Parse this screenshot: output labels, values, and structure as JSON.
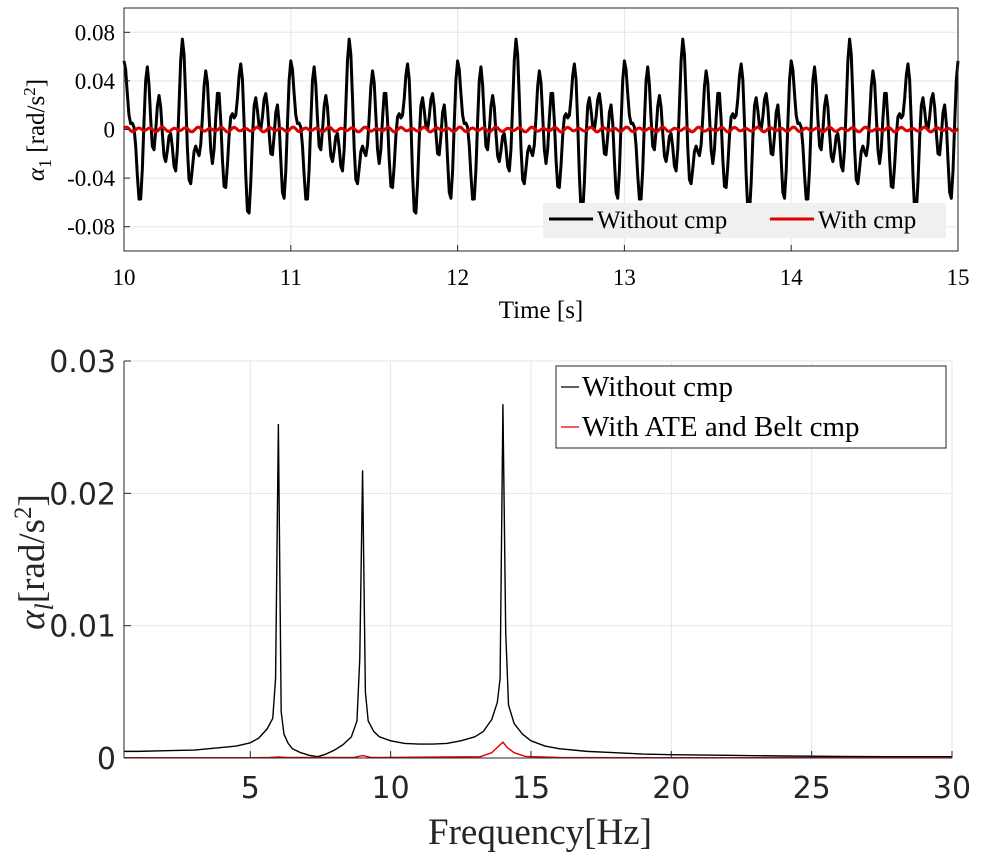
{
  "colors": {
    "without": "#000000",
    "with": "#dd0000",
    "grid": "#e6e6e6",
    "axis": "#262626",
    "legend_bg_top": "#f0f0f0"
  },
  "chart_data": [
    {
      "type": "line",
      "title": "",
      "xlabel": "Time [s]",
      "ylabel": {
        "symbol": "α",
        "subscript": "1",
        "unit_open": " [rad/s",
        "unit_sup": "2",
        "unit_close": "]"
      },
      "xlim": [
        10,
        15
      ],
      "ylim": [
        -0.1,
        0.1
      ],
      "xticks": [
        10,
        11,
        12,
        13,
        14,
        15
      ],
      "xtick_labels": [
        "10",
        "11",
        "12",
        "13",
        "14",
        "15"
      ],
      "yticks": [
        0.08,
        0.04,
        0,
        -0.04,
        -0.08
      ],
      "ytick_labels": [
        "0.08",
        "0.04",
        "0",
        "-0.04",
        "-0.08"
      ],
      "grid": true,
      "legend_position": "bottom-right",
      "legend_orientation": "horizontal",
      "series": [
        {
          "name": "Without cmp",
          "color": "#000000",
          "model": {
            "kind": "sum_of_sines",
            "dt": 0.01,
            "components": [
              {
                "freq": 6,
                "amp": 0.026,
                "phase": 1.2
              },
              {
                "freq": 9,
                "amp": 0.023,
                "phase": 0.4
              },
              {
                "freq": 14,
                "amp": 0.027,
                "phase": 2.1
              }
            ]
          }
        },
        {
          "name": "With cmp",
          "color": "#dd0000",
          "model": {
            "kind": "sum_of_sines",
            "dt": 0.01,
            "components": [
              {
                "freq": 14,
                "amp": 0.0015,
                "phase": 0.3
              },
              {
                "freq": 9,
                "amp": 0.0006,
                "phase": 1.0
              }
            ]
          }
        }
      ]
    },
    {
      "type": "line",
      "title": "",
      "xlabel": "Frequency[Hz]",
      "ylabel": {
        "symbol": "α",
        "subscript": "l",
        "unit_open": "[rad/s",
        "unit_sup": "2",
        "unit_close": "]"
      },
      "xlim": [
        0.5,
        30
      ],
      "ylim": [
        0,
        0.03
      ],
      "xticks": [
        5,
        10,
        15,
        20,
        25,
        30
      ],
      "xtick_labels": [
        "5",
        "10",
        "15",
        "20",
        "25",
        "30"
      ],
      "yticks": [
        0,
        0.01,
        0.02,
        0.03
      ],
      "ytick_labels": [
        "0",
        "0.01",
        "0.02",
        "0.03"
      ],
      "grid": true,
      "legend_position": "top-right",
      "legend_orientation": "vertical",
      "series": [
        {
          "name": "Without cmp",
          "color": "#000000",
          "x": [
            0.5,
            1,
            2,
            3,
            4,
            4.5,
            5,
            5.3,
            5.6,
            5.8,
            5.9,
            6.0,
            6.1,
            6.2,
            6.35,
            6.5,
            6.8,
            7.1,
            7.4,
            7.7,
            8.0,
            8.3,
            8.6,
            8.8,
            8.9,
            9.0,
            9.1,
            9.2,
            9.4,
            9.6,
            10,
            10.5,
            11,
            11.5,
            12,
            12.5,
            13,
            13.3,
            13.6,
            13.8,
            13.9,
            14.0,
            14.1,
            14.2,
            14.4,
            14.7,
            15,
            15.5,
            16,
            17,
            18,
            19,
            20,
            22,
            24,
            26,
            28,
            30
          ],
          "y": [
            0.0005,
            0.0005,
            0.00055,
            0.0006,
            0.0008,
            0.0009,
            0.00115,
            0.0015,
            0.0022,
            0.003,
            0.006,
            0.0252,
            0.0035,
            0.0018,
            0.0011,
            0.0007,
            0.0004,
            0.0002,
            0.0001,
            0.0003,
            0.0006,
            0.001,
            0.0016,
            0.0028,
            0.0075,
            0.0217,
            0.005,
            0.0028,
            0.002,
            0.0016,
            0.0013,
            0.0011,
            0.00105,
            0.00105,
            0.0011,
            0.0013,
            0.0016,
            0.002,
            0.0029,
            0.0042,
            0.006,
            0.0267,
            0.0095,
            0.004,
            0.0026,
            0.0018,
            0.0013,
            0.0009,
            0.0007,
            0.0005,
            0.0004,
            0.0003,
            0.00025,
            0.0002,
            0.00015,
            0.00012,
            0.0001,
            0.0001
          ]
        },
        {
          "name": "With ATE and Belt cmp",
          "color": "#dd0000",
          "x": [
            0.5,
            5,
            5.7,
            6.0,
            6.3,
            8.7,
            9.0,
            9.3,
            13.2,
            13.6,
            13.85,
            14.0,
            14.15,
            14.4,
            14.8,
            16,
            20,
            25,
            30
          ],
          "y": [
            2e-05,
            2e-05,
            4e-05,
            8e-05,
            4e-05,
            4e-05,
            0.00018,
            4e-05,
            0.0001,
            0.0004,
            0.0009,
            0.0012,
            0.0008,
            0.0004,
            0.00012,
            4e-05,
            2e-05,
            2e-05,
            2e-05
          ]
        }
      ]
    }
  ]
}
